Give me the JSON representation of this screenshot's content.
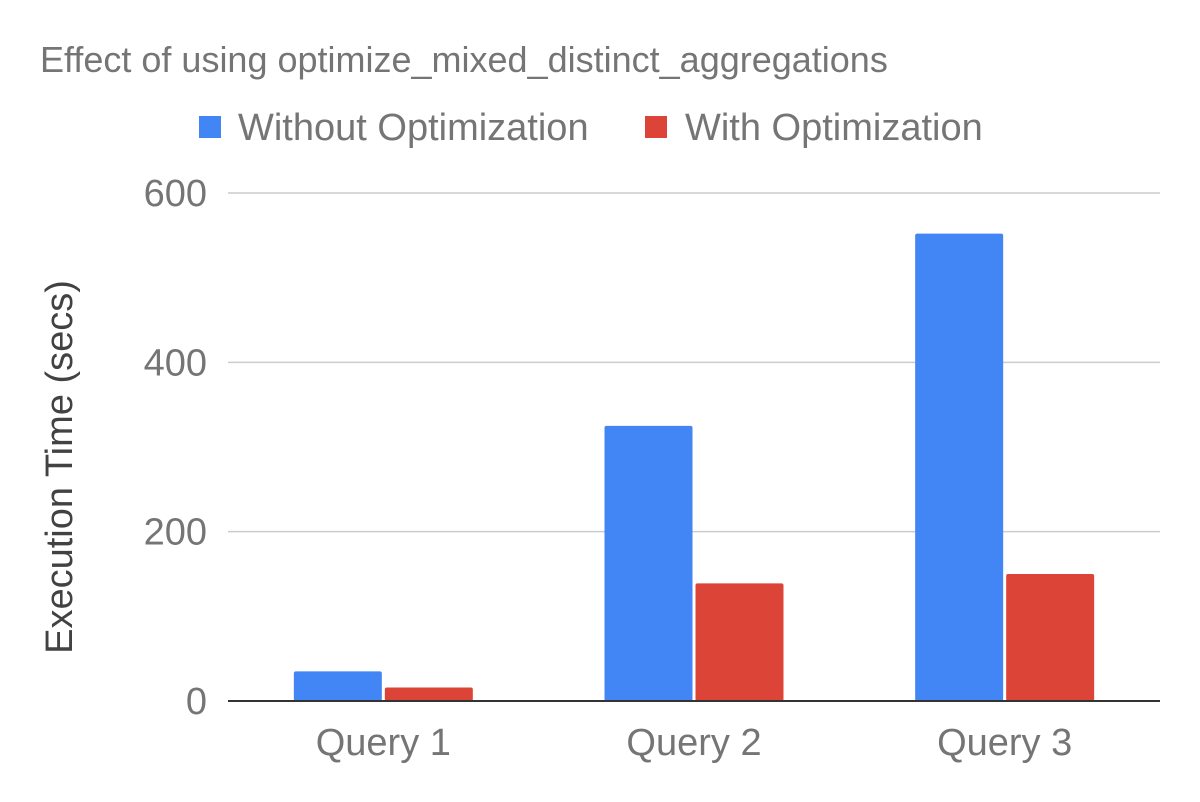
{
  "chart_data": {
    "type": "bar",
    "title": "Effect of using optimize_mixed_distinct_aggregations",
    "xlabel": "",
    "ylabel": "Execution Time (secs)",
    "categories": [
      "Query 1",
      "Query 2",
      "Query 3"
    ],
    "series": [
      {
        "name": "Without Optimization",
        "color": "#4285f4",
        "values": [
          35,
          325,
          552
        ]
      },
      {
        "name": "With Optimization",
        "color": "#db4437",
        "values": [
          16,
          139,
          150
        ]
      }
    ],
    "ylim": [
      0,
      600
    ],
    "yticks": [
      "0",
      "200",
      "400",
      "600"
    ],
    "grid": true,
    "legend_position": "top"
  }
}
